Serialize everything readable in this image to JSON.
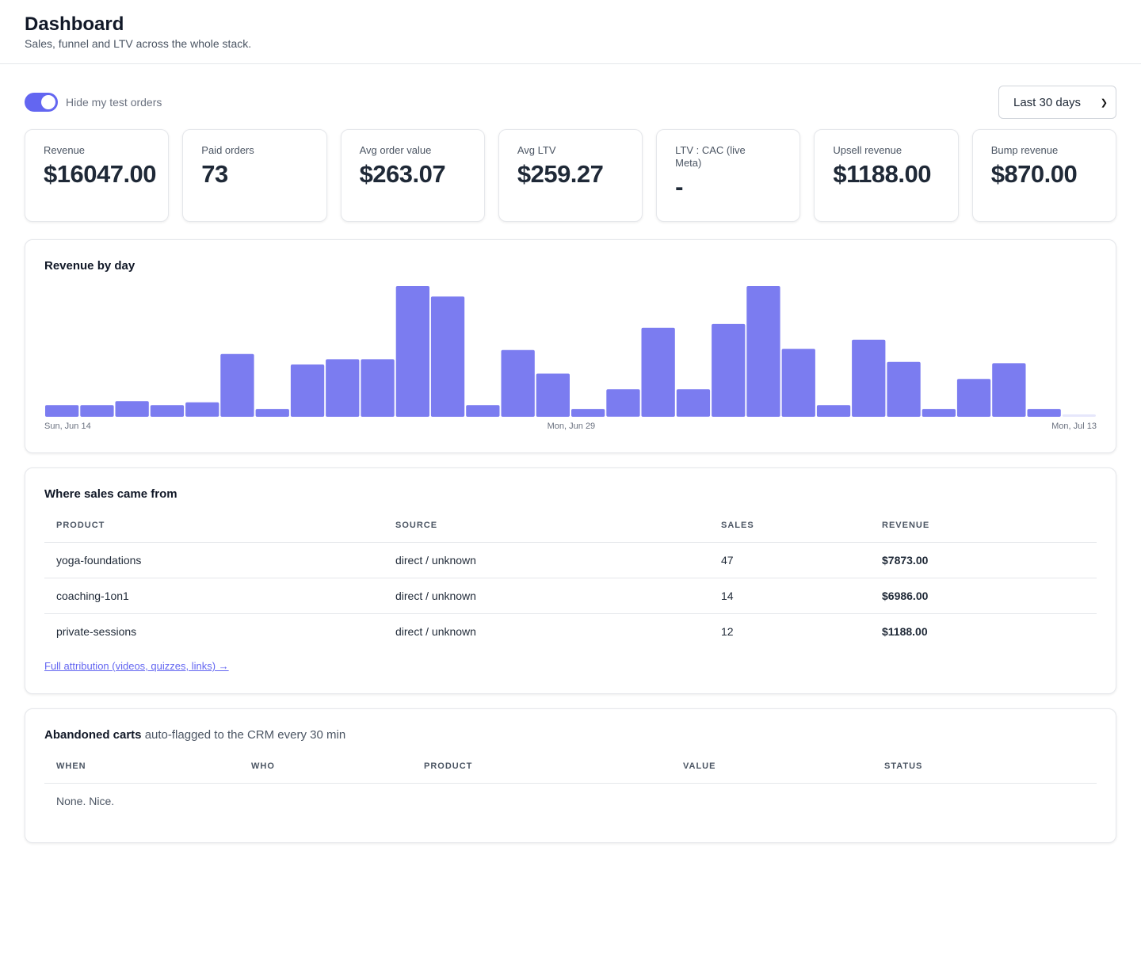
{
  "header": {
    "title": "Dashboard",
    "subtitle": "Sales, funnel and LTV across the whole stack."
  },
  "toolbar": {
    "toggle_label": "Hide my test orders",
    "toggle_on": true,
    "range_value": "Last 30 days"
  },
  "kpis": [
    {
      "label": "Revenue",
      "value": "$16047.00"
    },
    {
      "label": "Paid orders",
      "value": "73"
    },
    {
      "label": "Avg order value",
      "value": "$263.07"
    },
    {
      "label": "Avg LTV",
      "value": "$259.27"
    },
    {
      "label": "LTV : CAC (live Meta)",
      "value": "-"
    },
    {
      "label": "Upsell revenue",
      "value": "$1188.00"
    },
    {
      "label": "Bump revenue",
      "value": "$870.00"
    }
  ],
  "chart": {
    "title": "Revenue by day",
    "bar_color": "#7b7cf0",
    "empty_color": "#e6e7fb"
  },
  "chart_data": {
    "type": "bar",
    "title": "Revenue by day",
    "xlabel": "",
    "ylabel": "",
    "x_tick_labels": [
      "Sun, Jun 14",
      "Mon, Jun 29",
      "Mon, Jul 13"
    ],
    "categories": [
      "Jun 14",
      "Jun 15",
      "Jun 16",
      "Jun 17",
      "Jun 18",
      "Jun 19",
      "Jun 20",
      "Jun 21",
      "Jun 22",
      "Jun 23",
      "Jun 24",
      "Jun 25",
      "Jun 26",
      "Jun 27",
      "Jun 28",
      "Jun 29",
      "Jun 30",
      "Jul 1",
      "Jul 2",
      "Jul 3",
      "Jul 4",
      "Jul 5",
      "Jul 6",
      "Jul 7",
      "Jul 8",
      "Jul 9",
      "Jul 10",
      "Jul 11",
      "Jul 12",
      "Jul 13"
    ],
    "values": [
      9,
      9,
      12,
      9,
      11,
      48,
      6,
      40,
      44,
      44,
      100,
      92,
      9,
      51,
      33,
      6,
      21,
      68,
      21,
      71,
      100,
      52,
      9,
      59,
      42,
      6,
      29,
      41,
      6,
      1
    ],
    "ylim": [
      0,
      100
    ]
  },
  "sales": {
    "title": "Where sales came from",
    "columns": [
      "PRODUCT",
      "SOURCE",
      "SALES",
      "REVENUE"
    ],
    "rows": [
      {
        "product": "yoga-foundations",
        "source": "direct / unknown",
        "sales": "47",
        "revenue": "$7873.00"
      },
      {
        "product": "coaching-1on1",
        "source": "direct / unknown",
        "sales": "14",
        "revenue": "$6986.00"
      },
      {
        "product": "private-sessions",
        "source": "direct / unknown",
        "sales": "12",
        "revenue": "$1188.00"
      }
    ],
    "link_label": "Full attribution (videos, quizzes, links) →"
  },
  "carts": {
    "title": "Abandoned carts",
    "title_note": "auto-flagged to the CRM every 30 min",
    "columns": [
      "WHEN",
      "WHO",
      "PRODUCT",
      "VALUE",
      "STATUS"
    ],
    "empty_text": "None. Nice."
  }
}
